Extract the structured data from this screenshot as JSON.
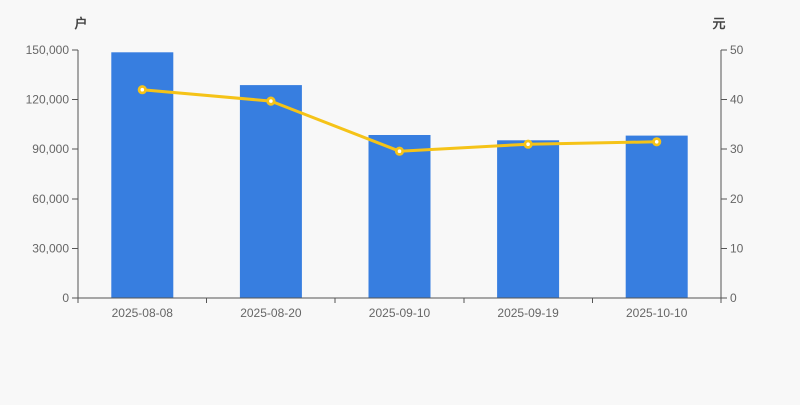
{
  "chart_data": {
    "type": "bar",
    "title": "",
    "legend": false,
    "grid": false,
    "background": "#f8f8f8",
    "axis_color": "#555555",
    "text_color": "#666666",
    "unit_label_color": "#444444",
    "categories": [
      "2025-08-08",
      "2025-08-20",
      "2025-09-10",
      "2025-09-19",
      "2025-10-10"
    ],
    "series": [
      {
        "name": "households",
        "kind": "bar",
        "yaxis": "left",
        "color": "#377EE0",
        "values": [
          148600,
          128800,
          98600,
          95400,
          98200
        ]
      },
      {
        "name": "price",
        "kind": "line",
        "yaxis": "right",
        "color": "#F5C318",
        "marker_fill": "#FFFFFF",
        "values": [
          42.0,
          39.7,
          29.6,
          31.0,
          31.5
        ]
      }
    ],
    "left_axis": {
      "unit": "户",
      "min": 0,
      "max": 150000,
      "tick_values": [
        0,
        30000,
        60000,
        90000,
        120000,
        150000
      ],
      "tick_labels": [
        "0",
        "30,000",
        "60,000",
        "90,000",
        "120,000",
        "150,000"
      ]
    },
    "right_axis": {
      "unit": "元",
      "min": 0,
      "max": 50,
      "tick_values": [
        0,
        10,
        20,
        30,
        40,
        50
      ],
      "tick_labels": [
        "0",
        "10",
        "20",
        "30",
        "40",
        "50"
      ]
    }
  }
}
